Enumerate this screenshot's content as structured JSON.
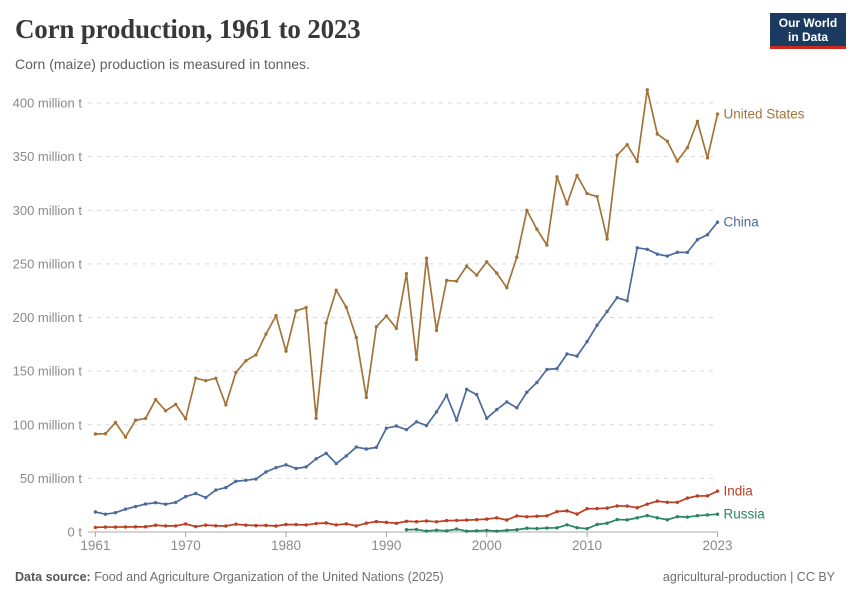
{
  "header": {
    "title": "Corn production, 1961 to 2023",
    "subtitle": "Corn (maize) production is measured in tonnes.",
    "logo_line1": "Our World",
    "logo_line2": "in Data",
    "logo_bg_color": "#1a3a5f",
    "logo_accent_color": "#cd281e"
  },
  "footer": {
    "source_label": "Data source:",
    "source_text": " Food and Agriculture Organization of the United Nations (2025)",
    "right_text": "agricultural-production | CC BY"
  },
  "chart_data": {
    "type": "line",
    "title": "Corn production, 1961 to 2023",
    "unit": "million tonnes",
    "x_start": 1961,
    "x_end": 2023,
    "x_ticks": [
      1961,
      1970,
      1980,
      1990,
      2000,
      2010,
      2023
    ],
    "ylim": [
      0,
      400
    ],
    "y_ticks": [
      {
        "value": 0,
        "label": "0 t"
      },
      {
        "value": 50,
        "label": "50 million t"
      },
      {
        "value": 100,
        "label": "100 million t"
      },
      {
        "value": 150,
        "label": "150 million t"
      },
      {
        "value": 200,
        "label": "200 million t"
      },
      {
        "value": 250,
        "label": "250 million t"
      },
      {
        "value": 300,
        "label": "300 million t"
      },
      {
        "value": 350,
        "label": "350 million t"
      },
      {
        "value": 400,
        "label": "400 million t"
      }
    ],
    "grid": true,
    "grid_color": "#d9d9d9",
    "axis_color": "#a8a8a8",
    "legend_position": "labels-at-line-ends",
    "series": [
      {
        "name": "Russia",
        "color": "#2C8465",
        "values": [
          null,
          null,
          null,
          null,
          null,
          null,
          null,
          null,
          null,
          null,
          null,
          null,
          null,
          null,
          null,
          null,
          null,
          null,
          null,
          null,
          null,
          null,
          null,
          null,
          null,
          null,
          null,
          null,
          null,
          null,
          null,
          2.1,
          2.4,
          0.9,
          1.7,
          1.1,
          2.7,
          0.8,
          1.1,
          1.5,
          0.8,
          1.6,
          2.1,
          3.5,
          3.2,
          3.7,
          3.9,
          6.7,
          4.0,
          3.1,
          7.0,
          8.2,
          11.6,
          11.3,
          13.2,
          15.3,
          13.2,
          11.4,
          14.3,
          13.9,
          15.2,
          15.9,
          16.6
        ]
      },
      {
        "name": "India",
        "color": "#B93E23",
        "values": [
          4.3,
          4.6,
          4.6,
          4.7,
          4.8,
          4.9,
          6.3,
          5.7,
          5.7,
          7.5,
          5.1,
          6.4,
          5.8,
          5.6,
          7.3,
          6.4,
          6.0,
          6.2,
          5.6,
          7.0,
          6.9,
          6.6,
          7.9,
          8.4,
          6.6,
          7.6,
          5.7,
          8.2,
          9.7,
          9.0,
          8.1,
          10.0,
          9.6,
          10.3,
          9.5,
          10.6,
          10.8,
          11.1,
          11.5,
          12.0,
          13.2,
          11.2,
          15.0,
          14.2,
          14.7,
          15.1,
          19.0,
          19.7,
          16.7,
          21.7,
          21.8,
          22.3,
          24.3,
          24.2,
          22.6,
          25.9,
          28.8,
          27.7,
          27.7,
          31.6,
          33.6,
          33.7,
          38.1
        ]
      },
      {
        "name": "China",
        "color": "#4C6A9C",
        "values": [
          18.7,
          16.6,
          18.0,
          21.3,
          23.7,
          26.1,
          27.3,
          25.9,
          27.6,
          33.0,
          35.9,
          32.1,
          39.1,
          41.4,
          47.3,
          48.2,
          49.4,
          56.0,
          60.0,
          62.6,
          59.2,
          60.7,
          68.2,
          73.4,
          63.8,
          70.9,
          79.2,
          77.4,
          78.9,
          96.8,
          98.8,
          95.4,
          102.7,
          99.3,
          112.0,
          127.5,
          104.3,
          133.0,
          128.1,
          106.0,
          114.1,
          121.3,
          115.8,
          130.3,
          139.4,
          151.6,
          152.3,
          166.0,
          164.0,
          177.5,
          192.8,
          205.6,
          218.5,
          215.6,
          265.0,
          263.6,
          259.1,
          257.3,
          260.8,
          260.7,
          272.6,
          277.2,
          288.8
        ]
      },
      {
        "name": "United States",
        "color": "#A3743A",
        "values": [
          91.4,
          91.6,
          102.1,
          88.5,
          104.2,
          105.9,
          123.5,
          113.0,
          119.0,
          105.5,
          143.4,
          141.1,
          143.3,
          118.5,
          148.7,
          159.7,
          165.2,
          184.6,
          201.7,
          168.6,
          206.2,
          209.2,
          106.0,
          194.9,
          225.5,
          209.6,
          181.4,
          125.5,
          191.3,
          201.5,
          189.9,
          240.8,
          160.9,
          255.3,
          187.9,
          234.5,
          233.9,
          247.9,
          239.5,
          251.9,
          241.4,
          227.8,
          256.2,
          299.9,
          282.3,
          267.5,
          331.2,
          305.9,
          332.5,
          315.6,
          312.8,
          273.2,
          351.3,
          361.1,
          345.5,
          412.3,
          371.1,
          364.3,
          345.9,
          358.4,
          382.9,
          348.8,
          389.7
        ]
      }
    ]
  }
}
